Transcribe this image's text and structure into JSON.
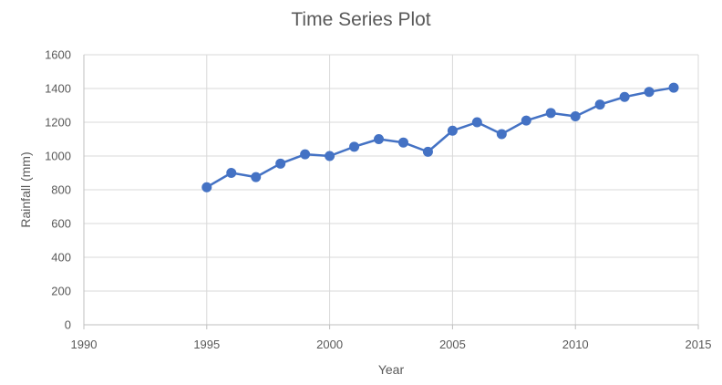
{
  "chart_data": {
    "type": "scatter",
    "title": "Time Series Plot",
    "xlabel": "Year",
    "ylabel": "Rainfall (mm)",
    "xlim": [
      1990,
      2015
    ],
    "ylim": [
      0,
      1600
    ],
    "x_ticks": [
      1990,
      1995,
      2000,
      2005,
      2010,
      2015
    ],
    "y_ticks": [
      0,
      200,
      400,
      600,
      800,
      1000,
      1200,
      1400,
      1600
    ],
    "grid": true,
    "legend": "none",
    "series": [
      {
        "color": "#4472C4",
        "marker": "circle",
        "line": true,
        "x": [
          1995,
          1996,
          1997,
          1998,
          1999,
          2000,
          2001,
          2002,
          2003,
          2004,
          2005,
          2006,
          2007,
          2008,
          2009,
          2010,
          2011,
          2012,
          2013,
          2014
        ],
        "y": [
          815,
          900,
          875,
          955,
          1010,
          1000,
          1055,
          1100,
          1080,
          1025,
          1150,
          1200,
          1130,
          1210,
          1255,
          1235,
          1305,
          1350,
          1380,
          1405
        ]
      }
    ]
  }
}
